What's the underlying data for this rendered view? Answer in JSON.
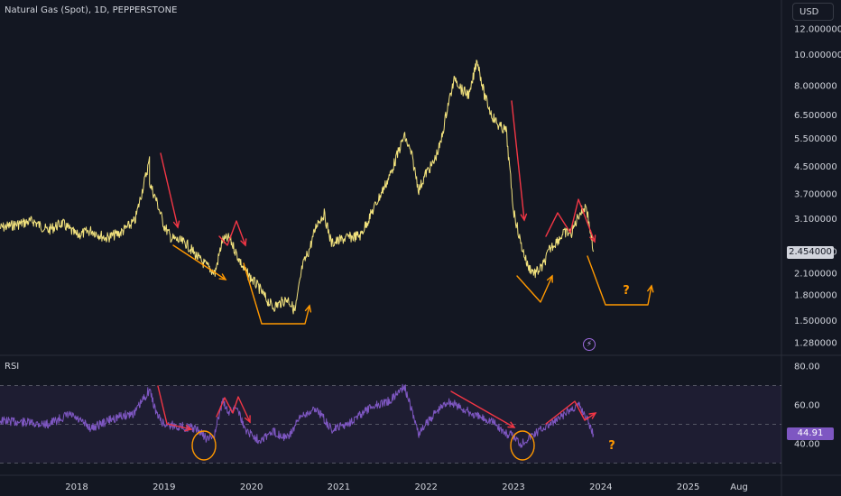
{
  "header": {
    "title": "Natural Gas (Spot), 1D, PEPPERSTONE",
    "currency": "USD"
  },
  "price_tag": "2.454000",
  "rsi_label": "RSI",
  "rsi_tag": "44.91",
  "annotation_text": "?",
  "colors": {
    "background": "#131722",
    "price_line": "#f2e27d",
    "rsi_line": "#7e57c2",
    "red_arrow": "#f23645",
    "orange_arrow": "#ff9800"
  },
  "chart_data": [
    {
      "type": "line",
      "title": "Natural Gas (Spot), 1D, PEPPERSTONE",
      "y_scale": "log",
      "ylim": [
        1.1,
        14.0
      ],
      "y_ticks": [
        "12.000000",
        "10.000000",
        "8.000000",
        "6.500000",
        "5.500000",
        "4.500000",
        "3.700000",
        "3.100000",
        "2.454000",
        "2.100000",
        "1.800000",
        "1.500000",
        "1.280000"
      ],
      "x_ticks": [
        "2018",
        "2019",
        "2020",
        "2021",
        "2022",
        "2023",
        "2024",
        "2025",
        "Aug"
      ],
      "series": [
        {
          "x": [
            "2017-06",
            "2017-07",
            "2017-09",
            "2017-11",
            "2018-01",
            "2018-03",
            "2018-05",
            "2018-07",
            "2018-09",
            "2018-11",
            "2018-11",
            "2018-12",
            "2019-01",
            "2019-02",
            "2019-04",
            "2019-06",
            "2019-07",
            "2019-08",
            "2019-09",
            "2019-10",
            "2019-11",
            "2019-12",
            "2020-02",
            "2020-03",
            "2020-04",
            "2020-05",
            "2020-06",
            "2020-07",
            "2020-08",
            "2020-09",
            "2020-10",
            "2020-11",
            "2020-12",
            "2021-02",
            "2021-04",
            "2021-06",
            "2021-08",
            "2021-10",
            "2021-11",
            "2021-12",
            "2022-01",
            "2022-02",
            "2022-03",
            "2022-04",
            "2022-05",
            "2022-06",
            "2022-07",
            "2022-08",
            "2022-09",
            "2022-10",
            "2022-11",
            "2022-12",
            "2023-01",
            "2023-02",
            "2023-03",
            "2023-04",
            "2023-05",
            "2023-06",
            "2023-07",
            "2023-08",
            "2023-09",
            "2023-10",
            "2023-11",
            "2023-12"
          ],
          "y": [
            2.9,
            3.05,
            2.85,
            3.0,
            2.75,
            2.85,
            2.7,
            2.8,
            3.05,
            4.7,
            4.0,
            3.5,
            2.95,
            2.7,
            2.6,
            2.3,
            2.2,
            2.1,
            2.65,
            2.7,
            2.4,
            2.15,
            1.9,
            1.75,
            1.65,
            1.7,
            1.75,
            1.6,
            2.2,
            2.5,
            3.0,
            3.2,
            2.6,
            2.7,
            2.75,
            3.4,
            4.2,
            5.6,
            4.9,
            3.8,
            4.3,
            4.6,
            5.3,
            7.0,
            8.5,
            7.7,
            7.5,
            9.7,
            7.5,
            6.5,
            6.0,
            5.8,
            3.3,
            2.6,
            2.2,
            2.1,
            2.2,
            2.5,
            2.65,
            2.8,
            2.8,
            3.2,
            3.4,
            2.45
          ]
        }
      ]
    },
    {
      "type": "line",
      "title": "RSI",
      "ylim": [
        30,
        80
      ],
      "y_ticks": [
        "80.00",
        "60.00",
        "40.00"
      ],
      "series": [
        {
          "x": [
            "2017-06",
            "2017-09",
            "2017-12",
            "2018-03",
            "2018-06",
            "2018-09",
            "2018-11",
            "2018-12",
            "2019-01",
            "2019-03",
            "2019-05",
            "2019-06",
            "2019-07",
            "2019-08",
            "2019-09",
            "2019-10",
            "2019-11",
            "2019-12",
            "2020-02",
            "2020-04",
            "2020-06",
            "2020-08",
            "2020-10",
            "2020-12",
            "2021-02",
            "2021-04",
            "2021-06",
            "2021-08",
            "2021-10",
            "2021-12",
            "2022-02",
            "2022-04",
            "2022-06",
            "2022-08",
            "2022-10",
            "2022-12",
            "2023-01",
            "2023-02",
            "2023-03",
            "2023-05",
            "2023-07",
            "2023-09",
            "2023-10",
            "2023-11",
            "2023-12"
          ],
          "y": [
            52,
            50,
            55,
            48,
            53,
            56,
            68,
            55,
            50,
            49,
            48,
            46,
            42,
            45,
            62,
            56,
            60,
            48,
            42,
            46,
            43,
            55,
            58,
            47,
            50,
            55,
            60,
            62,
            70,
            45,
            55,
            62,
            58,
            54,
            52,
            45,
            44,
            40,
            43,
            48,
            52,
            58,
            60,
            54,
            45
          ]
        }
      ]
    }
  ]
}
